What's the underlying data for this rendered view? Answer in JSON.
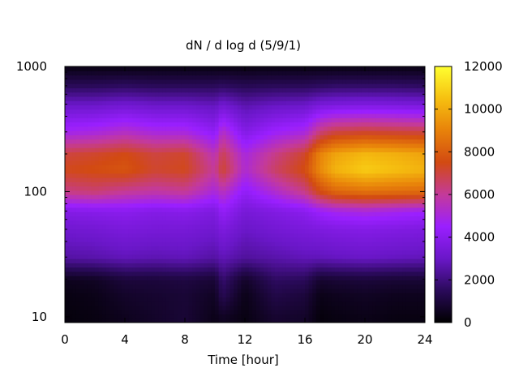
{
  "chart_data": {
    "type": "heatmap",
    "title": "dN / d log d (5/9/1)",
    "xlabel": "Time [hour]",
    "ylabel": "",
    "xlim": [
      0,
      24
    ],
    "ylim": [
      9,
      1000
    ],
    "y_scale": "log",
    "x_ticks": [
      0,
      4,
      8,
      12,
      16,
      20,
      24
    ],
    "x_tick_labels": [
      "0",
      "4",
      "8",
      "12",
      "16",
      "20",
      "24"
    ],
    "y_ticks": [
      10,
      100,
      1000
    ],
    "y_tick_labels": [
      "10",
      "100",
      "1000"
    ],
    "colorbar": {
      "min": 0,
      "max": 12000,
      "ticks": [
        0,
        2000,
        4000,
        6000,
        8000,
        10000,
        12000
      ],
      "tick_labels": [
        "0",
        "2000",
        "4000",
        "6000",
        "8000",
        "10000",
        "12000"
      ],
      "colors": [
        "#000000",
        "#2a0a5a",
        "#6a17c8",
        "#9a1fff",
        "#c43a9a",
        "#d24a12",
        "#e8820a",
        "#f6c010",
        "#ffff30"
      ]
    },
    "time_hours": [
      0,
      2,
      4,
      6,
      8,
      10,
      10.5,
      12,
      14,
      16,
      17,
      18,
      20,
      22,
      24
    ],
    "diameter_bins": [
      10,
      15,
      20,
      30,
      50,
      70,
      100,
      150,
      200,
      300,
      500,
      700,
      1000
    ],
    "values": [
      [
        200,
        300,
        500,
        700,
        900,
        400,
        600,
        300,
        800,
        700,
        200,
        300,
        400,
        300,
        300
      ],
      [
        300,
        400,
        700,
        800,
        900,
        600,
        1400,
        400,
        1200,
        1000,
        400,
        500,
        600,
        500,
        500
      ],
      [
        500,
        600,
        1000,
        1000,
        1100,
        900,
        1800,
        700,
        1600,
        1500,
        800,
        900,
        1000,
        900,
        900
      ],
      [
        2500,
        2600,
        2800,
        2700,
        2800,
        2500,
        2800,
        2400,
        2600,
        2800,
        2800,
        2900,
        3000,
        2900,
        2800
      ],
      [
        3200,
        3300,
        3500,
        3400,
        3400,
        3200,
        3600,
        3000,
        3300,
        3500,
        3600,
        3700,
        3800,
        3700,
        3600
      ],
      [
        3800,
        3900,
        4000,
        3800,
        3900,
        3600,
        4300,
        3400,
        3700,
        4000,
        4500,
        4800,
        5000,
        4800,
        4600
      ],
      [
        6200,
        6400,
        6000,
        5800,
        6000,
        5000,
        5500,
        4200,
        5200,
        6200,
        7500,
        8200,
        8500,
        8400,
        8300
      ],
      [
        7400,
        7600,
        7800,
        7200,
        7400,
        6000,
        7200,
        5200,
        6600,
        7600,
        9200,
        10200,
        10800,
        10500,
        10200
      ],
      [
        7000,
        7200,
        7500,
        7000,
        7200,
        5600,
        6800,
        5000,
        6200,
        7200,
        9000,
        9800,
        10300,
        10100,
        9800
      ],
      [
        4800,
        5000,
        5400,
        5000,
        5000,
        4200,
        5400,
        3800,
        4600,
        5000,
        6400,
        7000,
        7200,
        7100,
        7000
      ],
      [
        3000,
        3000,
        3200,
        3000,
        3000,
        2800,
        3200,
        2600,
        2900,
        3000,
        3400,
        3500,
        3600,
        3500,
        3400
      ],
      [
        1500,
        1500,
        1600,
        1500,
        1500,
        1500,
        1600,
        1400,
        1500,
        1500,
        1600,
        1700,
        1700,
        1700,
        1600
      ],
      [
        300,
        300,
        300,
        300,
        300,
        300,
        300,
        300,
        300,
        300,
        300,
        300,
        300,
        300,
        300
      ]
    ]
  }
}
